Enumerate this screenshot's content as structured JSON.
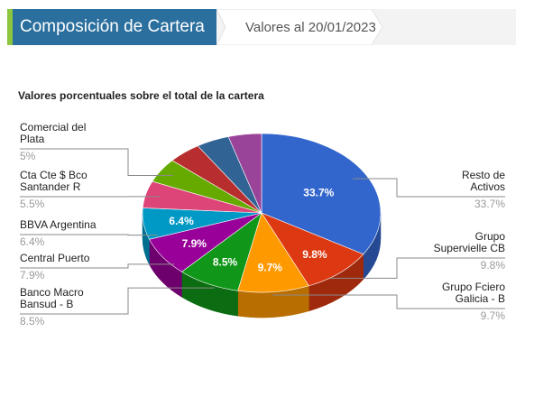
{
  "header": {
    "title": "Composición de Cartera",
    "date_label": "Valores al 20/01/2023"
  },
  "chart_data": {
    "type": "pie",
    "title": "Valores porcentuales sobre el total de la cartera",
    "slices": [
      {
        "label": "Resto de Activos",
        "value": 33.7,
        "display": "33.7%",
        "color": "#3366cc"
      },
      {
        "label": "Grupo Supervielle CB",
        "value": 9.8,
        "display": "9.8%",
        "color": "#dc3912"
      },
      {
        "label": "Grupo Fciero Galicia - B",
        "value": 9.7,
        "display": "9.7%",
        "color": "#ff9900"
      },
      {
        "label": "Banco Macro Bansud - B",
        "value": 8.5,
        "display": "8.5%",
        "color": "#109618"
      },
      {
        "label": "Central Puerto",
        "value": 7.9,
        "display": "7.9%",
        "color": "#990099"
      },
      {
        "label": "BBVA Argentina",
        "value": 6.4,
        "display": "6.4%",
        "color": "#0099c6"
      },
      {
        "label": "Cta Cte $ Bco Santander R",
        "value": 5.5,
        "display": "5.5%",
        "color": "#dd4477"
      },
      {
        "label": "Comercial del Plata",
        "value": 5,
        "display": "5%",
        "color": "#66aa00"
      },
      {
        "label": "",
        "value": 4.5,
        "display": "",
        "color": "#b82e2e"
      },
      {
        "label": "",
        "value": 4.5,
        "display": "",
        "color": "#316395"
      },
      {
        "label": "",
        "value": 4.5,
        "display": "",
        "color": "#994499"
      }
    ]
  }
}
